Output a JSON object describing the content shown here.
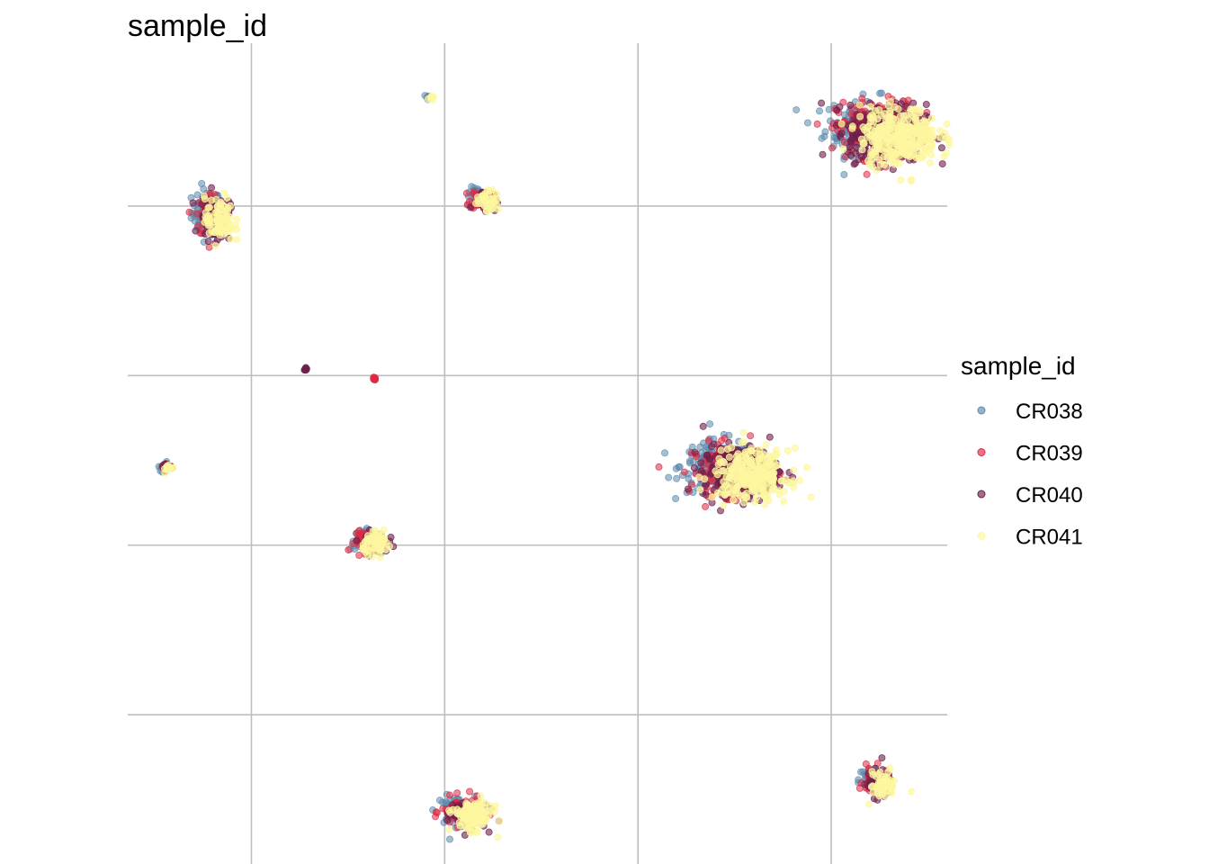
{
  "chart_data": {
    "type": "scatter",
    "title": "sample_id",
    "xlabel": "",
    "ylabel": "",
    "grid": true,
    "axis_ticks_labels": "hidden",
    "legend": {
      "title": "sample_id",
      "placement": "right",
      "entries": [
        {
          "label": "CR038",
          "color": "#5b8bad"
        },
        {
          "label": "CR039",
          "color": "#dc2a43"
        },
        {
          "label": "CR040",
          "color": "#6e1f4b"
        },
        {
          "label": "CR041",
          "color": "#fdf7a0"
        }
      ]
    },
    "series": [
      {
        "name": "CR038",
        "color": "#5b8bad",
        "opacity": 0.55
      },
      {
        "name": "CR039",
        "color": "#dc2a43",
        "opacity": 0.55
      },
      {
        "name": "CR040",
        "color": "#6e1f4b",
        "opacity": 0.6
      },
      {
        "name": "CR041",
        "color": "#fdf7a0",
        "opacity": 0.7
      }
    ],
    "xlim": [
      -6.2,
      15
    ],
    "ylim": [
      -14.4,
      9.8
    ],
    "x_gridlines": [
      -3,
      2,
      7,
      12
    ],
    "y_gridlines": [
      5,
      0,
      -5,
      -10
    ],
    "clusters": [
      {
        "id": "c1",
        "cx": -4.0,
        "cy": 4.7,
        "rx": 0.45,
        "ry": 0.8,
        "n": 300,
        "composition": [
          0.25,
          0.2,
          0.25,
          0.3
        ]
      },
      {
        "id": "c2",
        "cx": 3.0,
        "cy": 5.2,
        "rx": 0.35,
        "ry": 0.35,
        "n": 150,
        "composition": [
          0.25,
          0.25,
          0.2,
          0.3
        ]
      },
      {
        "id": "c3",
        "cx": 13.3,
        "cy": 7.2,
        "rx": 1.2,
        "ry": 1.0,
        "n": 1100,
        "composition": [
          0.15,
          0.25,
          0.3,
          0.3
        ]
      },
      {
        "id": "c4",
        "cx": 1.6,
        "cy": 8.2,
        "rx": 0.1,
        "ry": 0.08,
        "n": 12,
        "composition": [
          0.5,
          0,
          0,
          0.5
        ]
      },
      {
        "id": "c5",
        "cx": -1.6,
        "cy": 0.2,
        "rx": 0.05,
        "ry": 0.05,
        "n": 8,
        "composition": [
          0,
          0,
          1,
          0
        ]
      },
      {
        "id": "c6",
        "cx": 0.2,
        "cy": -0.1,
        "rx": 0.05,
        "ry": 0.05,
        "n": 8,
        "composition": [
          0,
          1,
          0,
          0
        ]
      },
      {
        "id": "c7",
        "cx": -5.2,
        "cy": -2.7,
        "rx": 0.2,
        "ry": 0.15,
        "n": 40,
        "composition": [
          0.2,
          0.2,
          0.3,
          0.3
        ]
      },
      {
        "id": "c8",
        "cx": 0.1,
        "cy": -4.9,
        "rx": 0.45,
        "ry": 0.35,
        "n": 220,
        "composition": [
          0.2,
          0.25,
          0.25,
          0.3
        ]
      },
      {
        "id": "c9",
        "cx": 9.5,
        "cy": -2.8,
        "rx": 1.15,
        "ry": 0.9,
        "n": 900,
        "composition": [
          0.2,
          0.2,
          0.3,
          0.3
        ]
      },
      {
        "id": "c10",
        "cx": 2.5,
        "cy": -12.9,
        "rx": 0.6,
        "ry": 0.5,
        "n": 350,
        "composition": [
          0.2,
          0.2,
          0.2,
          0.4
        ]
      },
      {
        "id": "c11",
        "cx": 13.2,
        "cy": -12.0,
        "rx": 0.4,
        "ry": 0.5,
        "n": 220,
        "composition": [
          0.2,
          0.25,
          0.3,
          0.25
        ]
      }
    ]
  }
}
